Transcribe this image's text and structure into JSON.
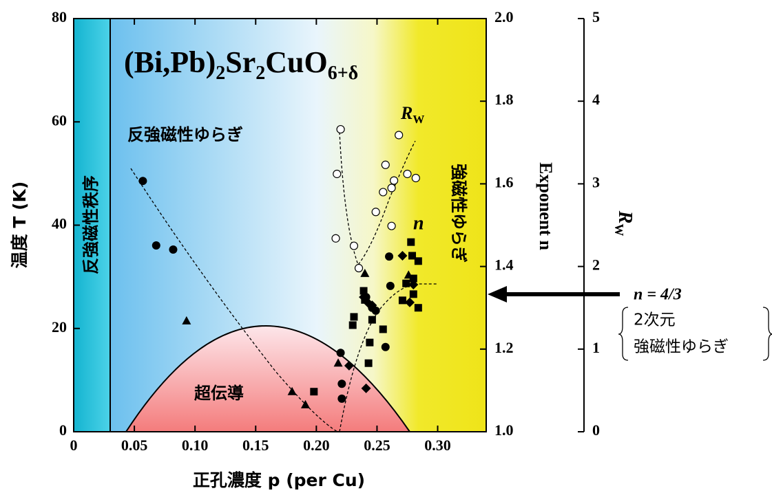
{
  "chart_data": {
    "type": "scatter",
    "title_parts": [
      "(Bi,Pb)",
      "2",
      "Sr",
      "2",
      "CuO",
      "6+δ"
    ],
    "x_label": "正孔濃度 p (per Cu)",
    "y_label": "温度 T (K)",
    "y2_label": "Exponent n",
    "y3_label_parts": [
      "R",
      "W"
    ],
    "annotations": {
      "af_order": "反強磁性秩序",
      "af_fluct": "反強磁性ゆらぎ",
      "sc": "超伝導",
      "fm_fluct": "強磁性ゆらぎ",
      "rw_parts": [
        "R",
        "W"
      ],
      "n": "n",
      "n43": "n = 4/3",
      "note_line1": "2次元",
      "note_line2": "強磁性ゆらぎ"
    },
    "xlim": [
      0,
      0.34
    ],
    "xticks": [
      0,
      0.05,
      {
        "value": 0.1,
        "label": "0.10"
      },
      0.15,
      {
        "value": 0.2,
        "label": "0.20"
      },
      0.25,
      {
        "value": 0.3,
        "label": "0.30"
      }
    ],
    "ylim": [
      0,
      80
    ],
    "yticks": [
      0,
      20,
      40,
      60,
      80
    ],
    "y2lim": [
      1.0,
      2.0
    ],
    "y2ticks": [
      {
        "value": 1.0,
        "label": "1.0"
      },
      1.2,
      1.4,
      1.6,
      1.8,
      {
        "value": 2.0,
        "label": "2.0"
      }
    ],
    "y3lim": [
      0,
      5
    ],
    "y3ticks": [
      0,
      1,
      2,
      3,
      4,
      5
    ],
    "series": [
      {
        "marker": "circle",
        "color": "#000000",
        "axis": "y2",
        "x": [
          0.057,
          0.068,
          0.082,
          0.22,
          0.221,
          0.221,
          0.241,
          0.246,
          0.249,
          0.257,
          0.26,
          0.261
        ],
        "values": [
          1.607,
          1.451,
          1.441,
          1.191,
          1.116,
          1.08,
          1.326,
          1.3,
          1.293,
          1.205,
          1.424,
          1.353
        ]
      },
      {
        "marker": "triangle",
        "color": "#000000",
        "axis": "y2",
        "x": [
          0.093,
          0.18,
          0.191,
          0.218,
          0.24,
          0.276
        ],
        "values": [
          1.268,
          1.097,
          1.065,
          1.166,
          1.383,
          1.379
        ]
      },
      {
        "marker": "square",
        "color": "#000000",
        "axis": "y2",
        "x": [
          0.198,
          0.231,
          0.23,
          0.239,
          0.24,
          0.243,
          0.244,
          0.246,
          0.255,
          0.271,
          0.274,
          0.278,
          0.279,
          0.28,
          0.284,
          0.284,
          0.28
        ],
        "values": [
          1.097,
          1.278,
          1.258,
          1.341,
          1.319,
          1.166,
          1.216,
          1.271,
          1.248,
          1.318,
          1.359,
          1.459,
          1.426,
          1.333,
          1.413,
          1.3,
          1.371
        ]
      },
      {
        "marker": "diamond",
        "color": "#000000",
        "axis": "y2",
        "x": [
          0.227,
          0.241,
          0.239,
          0.243,
          0.246,
          0.271,
          0.277,
          0.28
        ],
        "values": [
          1.16,
          1.105,
          1.326,
          1.311,
          1.306,
          1.426,
          1.313,
          1.356
        ]
      },
      {
        "marker": "open-circle",
        "color": "#000000",
        "axis": "y3",
        "x": [
          0.216,
          0.22,
          0.217,
          0.231,
          0.235,
          0.249,
          0.255,
          0.257,
          0.262,
          0.262,
          0.264,
          0.268,
          0.275,
          0.282
        ],
        "values": [
          2.34,
          3.66,
          3.12,
          2.25,
          1.98,
          2.66,
          2.9,
          3.23,
          2.49,
          2.95,
          3.04,
          3.59,
          3.12,
          3.07
        ]
      }
    ]
  }
}
